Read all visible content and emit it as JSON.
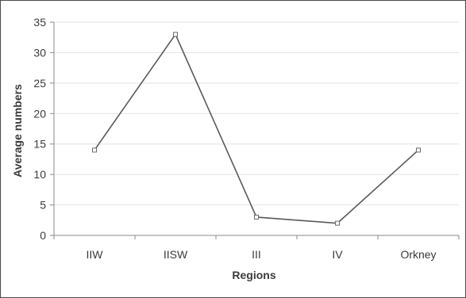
{
  "chart_data": {
    "type": "line",
    "categories": [
      "IIW",
      "IISW",
      "III",
      "IV",
      "Orkney"
    ],
    "series": [
      {
        "values": [
          14,
          33,
          3,
          2,
          14
        ]
      }
    ],
    "xlabel": "Regions",
    "ylabel": "Average numbers",
    "ylim": [
      0,
      35
    ],
    "yticks": [
      "0",
      "5",
      "10",
      "15",
      "20",
      "25",
      "30",
      "35"
    ],
    "grid": true,
    "line_color": "#5a5a5a",
    "marker": "open-square"
  }
}
